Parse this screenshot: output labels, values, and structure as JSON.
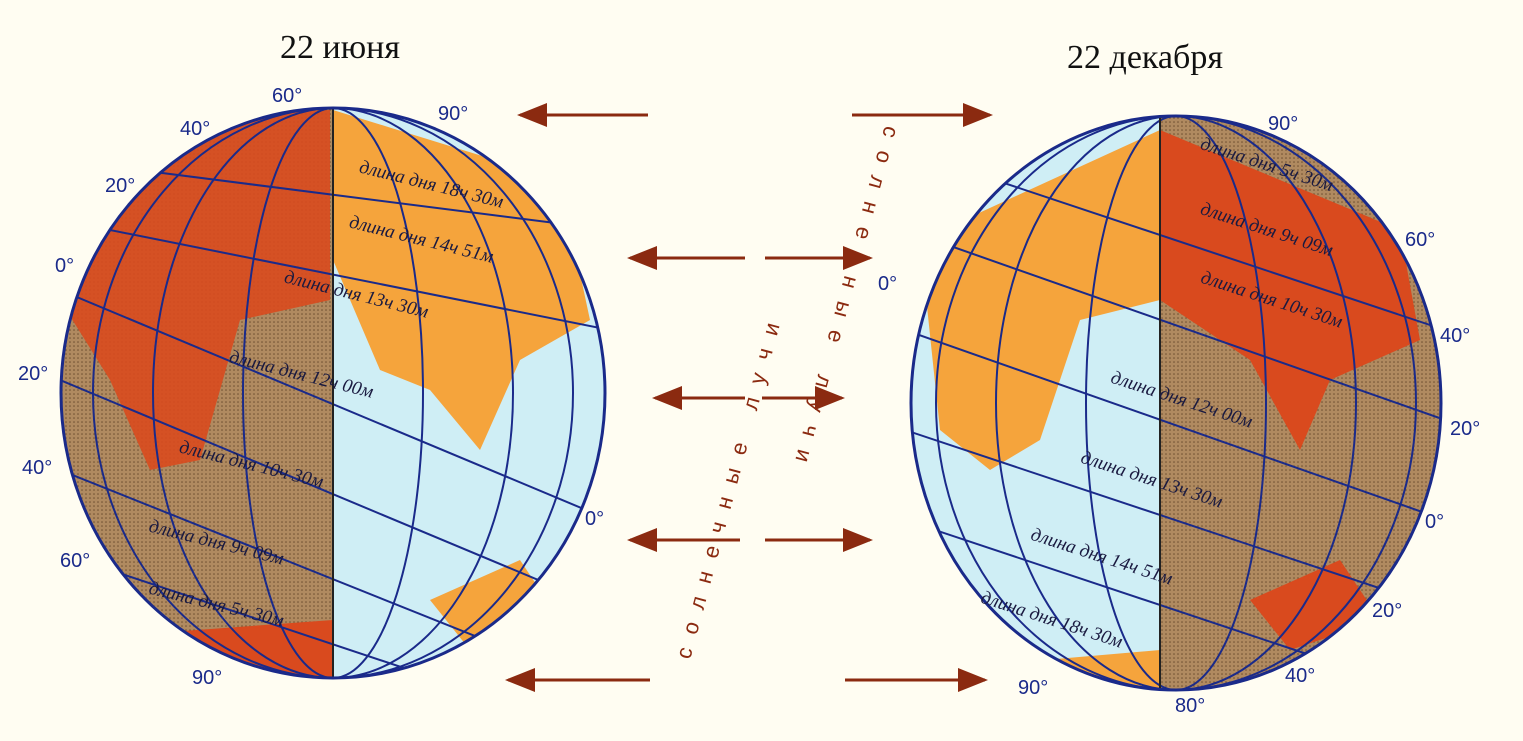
{
  "left": {
    "title": "22 июня",
    "degrees": [
      "60°",
      "90°",
      "40°",
      "20°",
      "0°",
      "20°",
      "40°",
      "60°",
      "90°",
      "0°"
    ],
    "day_lengths": [
      "длина дня 18ч 30м",
      "длина дня 14ч 51м",
      "длина дня 13ч 30м",
      "длина дня 12ч 00м",
      "длина дня 10ч 30м",
      "длина дня 9ч 09м",
      "длина дня 5ч 30м"
    ]
  },
  "right": {
    "title": "22 декабря",
    "degrees": [
      "90°",
      "60°",
      "0°",
      "40°",
      "20°",
      "0°",
      "20°",
      "90°",
      "40°",
      "80°"
    ],
    "day_lengths": [
      "длина дня 5ч 30м",
      "длина дня 9ч 09м",
      "длина дня 10ч 30м",
      "длина дня 12ч 00м",
      "длина дня 13ч 30м",
      "длина дня 14ч 51м",
      "длина дня 18ч 30м"
    ]
  },
  "rays": [
    "солнечные лучи",
    "солнечные лучи"
  ]
}
